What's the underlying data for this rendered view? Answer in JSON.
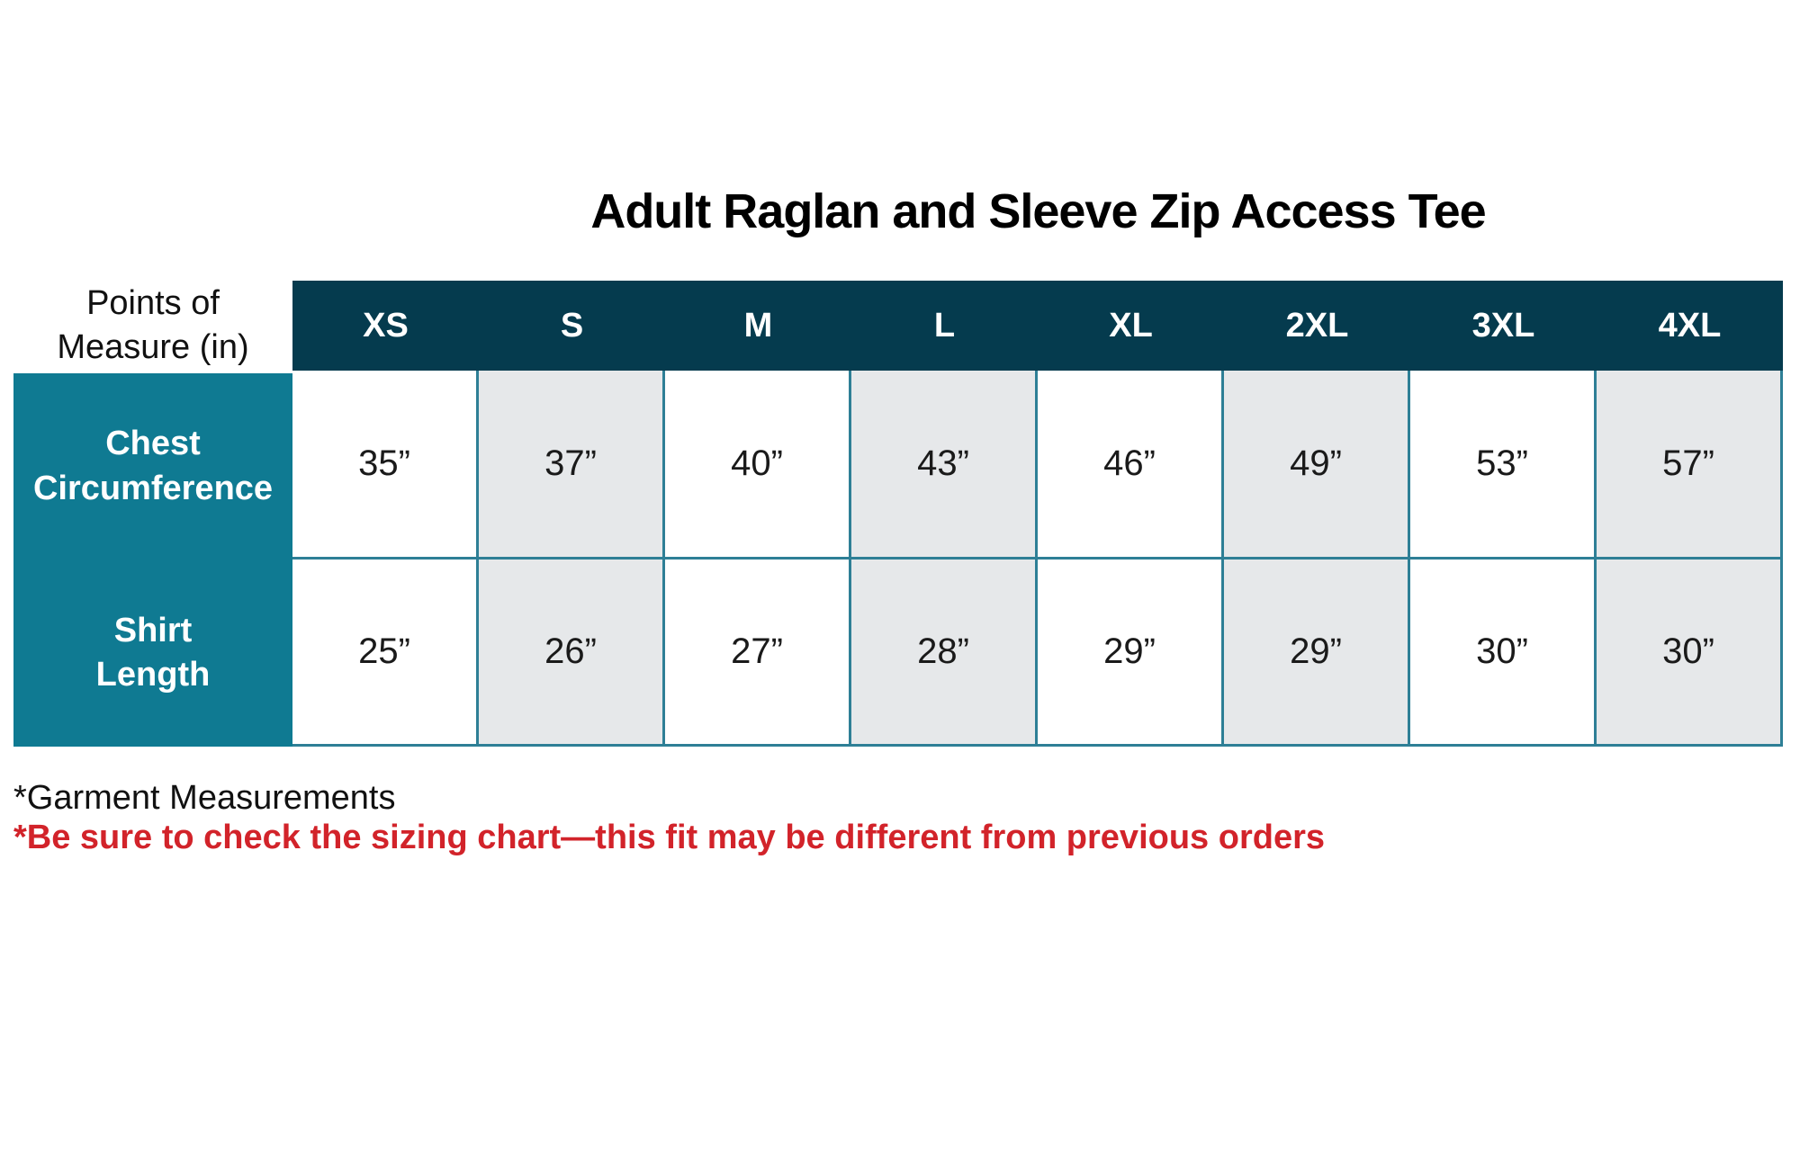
{
  "title": "Adult Raglan and Sleeve Zip Access Tee",
  "table": {
    "corner_lines": [
      "Points of",
      "Measure (in)"
    ],
    "sizes": [
      "XS",
      "S",
      "M",
      "L",
      "XL",
      "2XL",
      "3XL",
      "4XL"
    ],
    "rows": [
      {
        "label_lines": [
          "Chest",
          "Circumference"
        ],
        "display": [
          "35”",
          "37”",
          "40”",
          "43”",
          "46”",
          "49”",
          "53”",
          "57”"
        ]
      },
      {
        "label_lines": [
          "Shirt",
          "Length"
        ],
        "display": [
          "25”",
          "26”",
          "27”",
          "28”",
          "29”",
          "29”",
          "30”",
          "30”"
        ]
      }
    ]
  },
  "notes": {
    "garment": "*Garment Measurements",
    "warning": "*Be sure to check the sizing chart—this fit may be different from previous orders"
  },
  "colors": {
    "header_navy": "#053B4E",
    "row_label_teal": "#0F7A92",
    "grid_line_teal": "#2E7F96",
    "stripe_gray": "#E6E8EA",
    "warning_red": "#D2232A"
  },
  "chart_data": {
    "type": "table",
    "title": "Adult Raglan and Sleeve Zip Access Tee",
    "units": "inches",
    "columns": [
      "XS",
      "S",
      "M",
      "L",
      "XL",
      "2XL",
      "3XL",
      "4XL"
    ],
    "rows": [
      {
        "label": "Chest Circumference",
        "values": [
          35,
          37,
          40,
          43,
          46,
          49,
          53,
          57
        ]
      },
      {
        "label": "Shirt Length",
        "values": [
          25,
          26,
          27,
          28,
          29,
          29,
          30,
          30
        ]
      }
    ],
    "footnotes": [
      "*Garment Measurements",
      "*Be sure to check the sizing chart—this fit may be different from previous orders"
    ]
  }
}
